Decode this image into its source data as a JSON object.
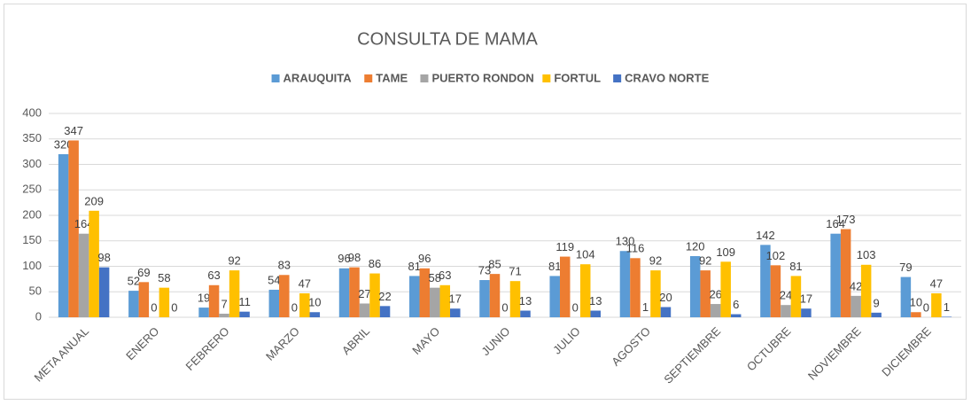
{
  "chart_data": {
    "type": "bar",
    "title": "CONSULTA DE MAMA",
    "categories": [
      "META ANUAL",
      "ENERO",
      "FEBRERO",
      "MARZO",
      "ABRIL",
      "MAYO",
      "JUNIO",
      "JULIO",
      "AGOSTO",
      "SEPTIEMBRE",
      "OCTUBRE",
      "NOVIEMBRE",
      "DICIEMBRE"
    ],
    "series": [
      {
        "name": "ARAUQUITA",
        "color": "#5b9bd5",
        "values": [
          320,
          52,
          19,
          54,
          96,
          81,
          73,
          81,
          130,
          120,
          142,
          164,
          79
        ]
      },
      {
        "name": "TAME",
        "color": "#ed7d31",
        "values": [
          347,
          69,
          63,
          83,
          98,
          96,
          85,
          119,
          116,
          92,
          102,
          173,
          10
        ]
      },
      {
        "name": "PUERTO RONDON",
        "color": "#a5a5a5",
        "values": [
          164,
          0,
          7,
          0,
          27,
          58,
          0,
          0,
          1,
          26,
          24,
          42,
          0
        ]
      },
      {
        "name": "FORTUL",
        "color": "#ffc000",
        "values": [
          209,
          58,
          92,
          47,
          86,
          63,
          71,
          104,
          92,
          109,
          81,
          103,
          47
        ]
      },
      {
        "name": "CRAVO NORTE",
        "color": "#4472c4",
        "values": [
          98,
          0,
          11,
          10,
          22,
          17,
          13,
          13,
          20,
          6,
          17,
          9,
          1
        ]
      }
    ],
    "ylim": [
      0,
      400
    ],
    "yticks": [
      0,
      50,
      100,
      150,
      200,
      250,
      300,
      350,
      400
    ],
    "grid": true,
    "legend": "top"
  }
}
